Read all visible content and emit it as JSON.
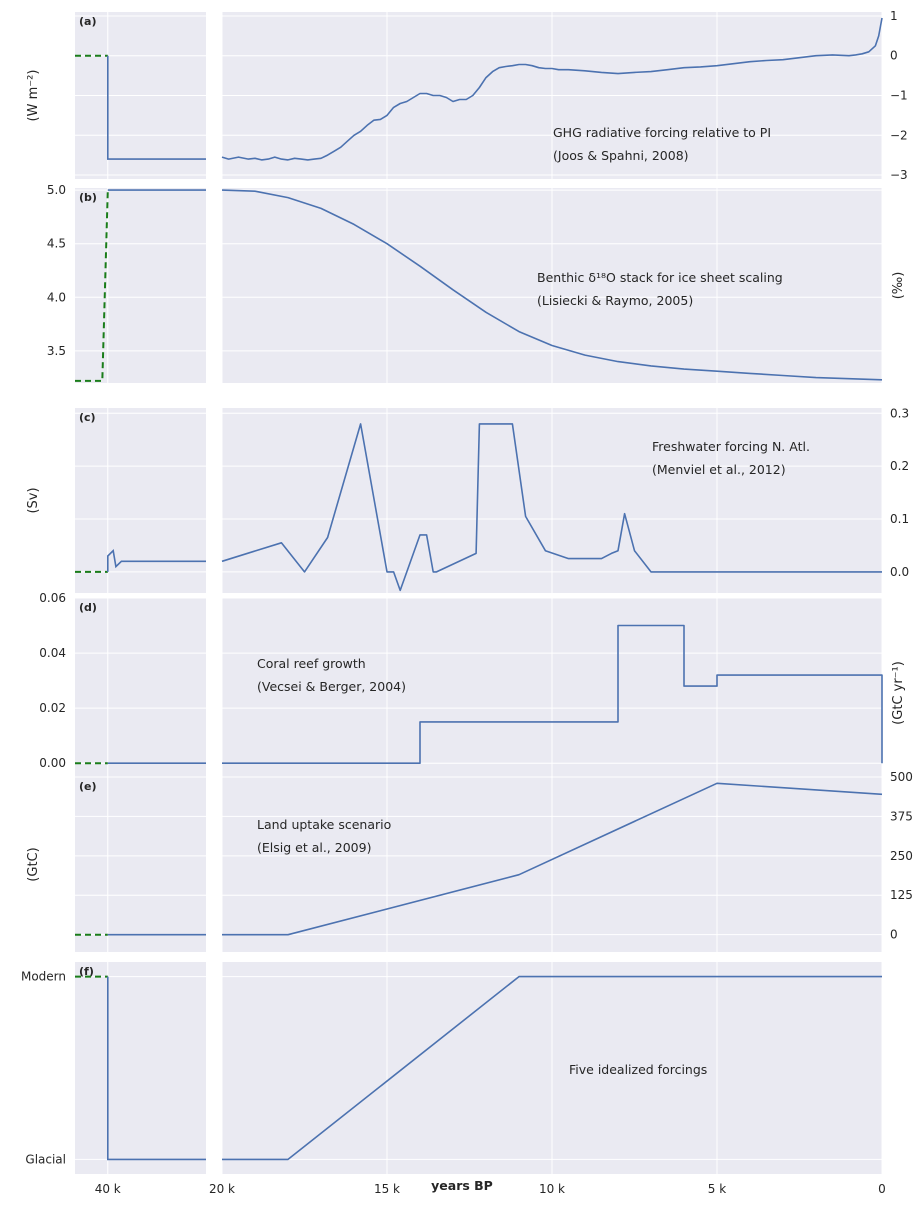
{
  "figure": {
    "x_axis_title": "years BP"
  },
  "chart_data": [
    {
      "type": "line",
      "panel": "(a)",
      "ylabel": "(W m⁻²)",
      "annotation": [
        "GHG radiative forcing relative to PI",
        "(Joos & Spahni, 2008)"
      ],
      "y_tick_side": "right",
      "ylim": [
        -3.1,
        1.1
      ],
      "yticks": [
        1,
        0,
        -1,
        -2,
        -3
      ],
      "ytick_labels": [
        "1",
        "0",
        "−1",
        "−2",
        "−3"
      ],
      "left_box": {
        "dashed": [
          [
            46000,
            0
          ],
          [
            40000,
            0
          ]
        ],
        "solid": [
          [
            40000,
            0
          ],
          [
            40000,
            -2.6
          ],
          [
            22000,
            -2.6
          ]
        ]
      },
      "series": [
        {
          "x": [
            20000,
            19800,
            19500,
            19200,
            19000,
            18800,
            18600,
            18400,
            18200,
            18000,
            17800,
            17600,
            17400,
            17200,
            17000,
            16800,
            16600,
            16400,
            16200,
            16000,
            15800,
            15600,
            15400,
            15200,
            15000,
            14800,
            14600,
            14400,
            14200,
            14000,
            13800,
            13600,
            13400,
            13200,
            13000,
            12800,
            12600,
            12400,
            12200,
            12000,
            11800,
            11600,
            11400,
            11200,
            11000,
            10800,
            10600,
            10400,
            10200,
            10000,
            9800,
            9500,
            9000,
            8500,
            8000,
            7500,
            7000,
            6500,
            6000,
            5500,
            5000,
            4500,
            4000,
            3500,
            3000,
            2500,
            2000,
            1500,
            1000,
            800,
            600,
            400,
            200,
            100,
            0
          ],
          "y": [
            -2.55,
            -2.6,
            -2.55,
            -2.6,
            -2.58,
            -2.62,
            -2.6,
            -2.55,
            -2.6,
            -2.62,
            -2.58,
            -2.6,
            -2.62,
            -2.6,
            -2.58,
            -2.5,
            -2.4,
            -2.3,
            -2.15,
            -2.0,
            -1.9,
            -1.75,
            -1.62,
            -1.6,
            -1.5,
            -1.3,
            -1.2,
            -1.15,
            -1.05,
            -0.95,
            -0.95,
            -1.0,
            -1.0,
            -1.05,
            -1.15,
            -1.1,
            -1.1,
            -1.0,
            -0.8,
            -0.55,
            -0.4,
            -0.3,
            -0.27,
            -0.25,
            -0.22,
            -0.22,
            -0.25,
            -0.3,
            -0.32,
            -0.32,
            -0.35,
            -0.35,
            -0.38,
            -0.42,
            -0.45,
            -0.42,
            -0.4,
            -0.35,
            -0.3,
            -0.28,
            -0.25,
            -0.2,
            -0.15,
            -0.12,
            -0.1,
            -0.05,
            0.0,
            0.02,
            0.0,
            0.02,
            0.05,
            0.1,
            0.25,
            0.5,
            0.95
          ]
        }
      ]
    },
    {
      "type": "line",
      "panel": "(b)",
      "ylabel": "(‰)",
      "annotation": [
        "Benthic δ¹⁸O stack for ice sheet scaling",
        "(Lisiecki & Raymo, 2005)"
      ],
      "y_tick_side": "left",
      "ylim": [
        3.2,
        5.02
      ],
      "yticks": [
        5.0,
        4.5,
        4.0,
        3.5
      ],
      "ytick_labels": [
        "5.0",
        "4.5",
        "4.0",
        "3.5"
      ],
      "left_box": {
        "dashed": [
          [
            46000,
            3.22
          ],
          [
            41000,
            3.22
          ],
          [
            40000,
            5.0
          ]
        ],
        "solid": [
          [
            40000,
            5.0
          ],
          [
            22000,
            5.0
          ]
        ]
      },
      "series": [
        {
          "x": [
            20000,
            19000,
            18000,
            17000,
            16000,
            15000,
            14000,
            13000,
            12000,
            11000,
            10000,
            9000,
            8000,
            7000,
            6000,
            5000,
            4000,
            3000,
            2000,
            1000,
            0
          ],
          "y": [
            5.0,
            4.99,
            4.93,
            4.83,
            4.68,
            4.5,
            4.29,
            4.07,
            3.86,
            3.68,
            3.55,
            3.46,
            3.4,
            3.36,
            3.33,
            3.31,
            3.29,
            3.27,
            3.25,
            3.24,
            3.23
          ]
        }
      ]
    },
    {
      "type": "line",
      "panel": "(c)",
      "ylabel": "(Sv)",
      "annotation": [
        "Freshwater forcing N. Atl.",
        "(Menviel et al., 2012)"
      ],
      "y_tick_side": "right",
      "ylim": [
        -0.04,
        0.31
      ],
      "yticks": [
        0.3,
        0.2,
        0.1,
        0.0
      ],
      "ytick_labels": [
        "0.3",
        "0.2",
        "0.1",
        "0.0"
      ],
      "left_box": {
        "dashed": [
          [
            46000,
            0.0
          ],
          [
            40000,
            0.0
          ]
        ],
        "solid": [
          [
            40000,
            0.0
          ],
          [
            40000,
            0.03
          ],
          [
            39000,
            0.04
          ],
          [
            38500,
            0.01
          ],
          [
            37500,
            0.02
          ],
          [
            22000,
            0.02
          ]
        ]
      },
      "series": [
        {
          "x": [
            20000,
            18200,
            17500,
            16800,
            15800,
            15200,
            15000,
            14800,
            14600,
            14000,
            13800,
            13600,
            13500,
            12300,
            12200,
            11200,
            10800,
            10200,
            9500,
            8500,
            8200,
            8000,
            7800,
            7500,
            7000,
            0
          ],
          "y": [
            0.02,
            0.055,
            0.0,
            0.065,
            0.28,
            0.07,
            0.0,
            0.0,
            -0.035,
            0.07,
            0.07,
            0.0,
            0.0,
            0.035,
            0.28,
            0.28,
            0.105,
            0.04,
            0.025,
            0.025,
            0.035,
            0.04,
            0.11,
            0.04,
            0.0,
            0.0
          ]
        }
      ]
    },
    {
      "type": "line",
      "panel": "(d)",
      "ylabel": "(GtC yr⁻¹)",
      "annotation": [
        "Coral reef growth",
        "(Vecsei & Berger, 2004)"
      ],
      "y_tick_side": "left",
      "ylim": [
        -0.009,
        0.06
      ],
      "yticks": [
        0.06,
        0.04,
        0.02,
        0.0
      ],
      "ytick_labels": [
        "0.06",
        "0.04",
        "0.02",
        "0.00"
      ],
      "left_box": {
        "dashed": [
          [
            46000,
            0.0
          ],
          [
            40000,
            0.0
          ]
        ],
        "solid": [
          [
            40000,
            0.0
          ],
          [
            22000,
            0.0
          ]
        ]
      },
      "series": [
        {
          "x": [
            20000,
            14000,
            14000,
            8000,
            8000,
            6000,
            6000,
            5000,
            5000,
            0,
            0
          ],
          "y": [
            0.0,
            0.0,
            0.015,
            0.015,
            0.05,
            0.05,
            0.028,
            0.028,
            0.032,
            0.032,
            0.0
          ]
        }
      ]
    },
    {
      "type": "line",
      "panel": "(e)",
      "ylabel": "(GtC)",
      "annotation": [
        "Land uptake scenario",
        "(Elsig et al., 2009)"
      ],
      "y_tick_side": "right",
      "ylim": [
        -55,
        500
      ],
      "yticks": [
        500,
        375,
        250,
        125,
        0
      ],
      "ytick_labels": [
        "500",
        "375",
        "250",
        "125",
        "0"
      ],
      "left_box": {
        "dashed": [
          [
            46000,
            0
          ],
          [
            40000,
            0
          ]
        ],
        "solid": [
          [
            40000,
            0
          ],
          [
            22000,
            0
          ]
        ]
      },
      "series": [
        {
          "x": [
            20000,
            18000,
            11000,
            5000,
            0
          ],
          "y": [
            0,
            0,
            190,
            480,
            445
          ]
        }
      ]
    },
    {
      "type": "line",
      "panel": "(f)",
      "ylabel": "",
      "annotation": [
        "Five idealized forcings"
      ],
      "y_tick_side": "left",
      "ylim": [
        -0.08,
        1.08
      ],
      "yticks": [
        1,
        0
      ],
      "ytick_labels": [
        "Modern",
        "Glacial"
      ],
      "left_box": {
        "dashed": [
          [
            46000,
            1
          ],
          [
            40000,
            1
          ]
        ],
        "solid": [
          [
            40000,
            1
          ],
          [
            40000,
            0
          ],
          [
            22000,
            0
          ]
        ]
      },
      "series": [
        {
          "x": [
            20000,
            18000,
            11000,
            0
          ],
          "y": [
            0,
            0,
            1,
            1
          ]
        }
      ]
    }
  ],
  "x_axis": {
    "left_ticks": [
      40000
    ],
    "left_tick_labels": [
      "40 k"
    ],
    "right_ticks": [
      20000,
      15000,
      10000,
      5000,
      0
    ],
    "right_tick_labels": [
      "20 k",
      "15 k",
      "10 k",
      "5 k",
      "0"
    ]
  },
  "colors": {
    "plot_bg": "#EAEAF2",
    "grid": "#FFFFFF",
    "line": "#4C72B0",
    "dashed": "#1A7D1A",
    "text": "#262626"
  }
}
